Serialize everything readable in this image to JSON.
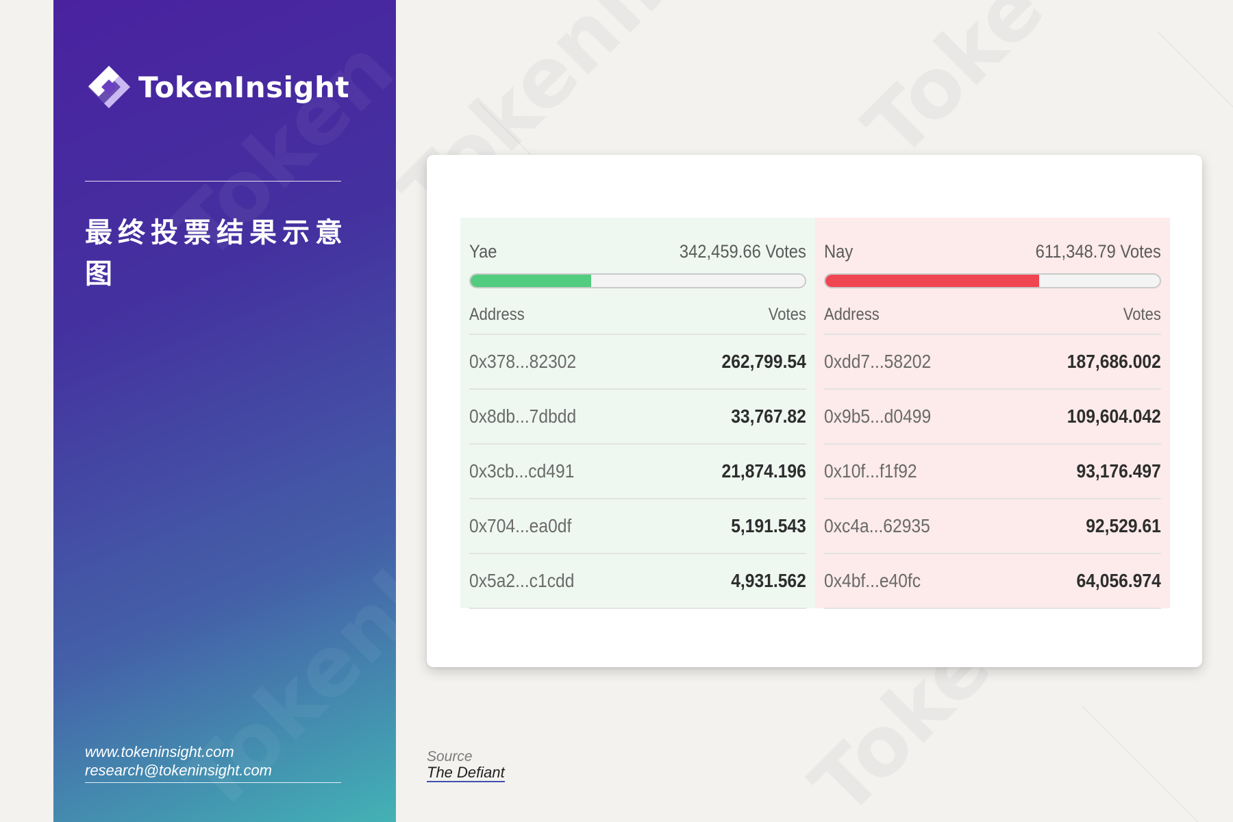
{
  "brand": {
    "name": "TokenInsight",
    "watermark": "TokenInsight"
  },
  "sidebar": {
    "title": "最终投票结果示意图",
    "website": "www.tokeninsight.com",
    "email": "research@tokeninsight.com"
  },
  "source": {
    "label": "Source",
    "name": "The Defiant"
  },
  "colors": {
    "sidebar_top": "#4a22a0",
    "sidebar_bottom": "#43b2b5",
    "yae_bar": "#52cc7e",
    "nay_bar": "#ef4652",
    "yae_bg": "#eef8f1",
    "nay_bg": "#fdeaea"
  },
  "vote": {
    "yae": {
      "label": "Yae",
      "total": "342,459.66 Votes",
      "progress_fraction": 0.36,
      "address_header": "Address",
      "votes_header": "Votes",
      "rows": [
        {
          "address": "0x378...82302",
          "votes": "262,799.54"
        },
        {
          "address": "0x8db...7dbdd",
          "votes": "33,767.82"
        },
        {
          "address": "0x3cb...cd491",
          "votes": "21,874.196"
        },
        {
          "address": "0x704...ea0df",
          "votes": "5,191.543"
        },
        {
          "address": "0x5a2...c1cdd",
          "votes": "4,931.562"
        }
      ]
    },
    "nay": {
      "label": "Nay",
      "total": "611,348.79 Votes",
      "progress_fraction": 0.64,
      "address_header": "Address",
      "votes_header": "Votes",
      "rows": [
        {
          "address": "0xdd7...58202",
          "votes": "187,686.002"
        },
        {
          "address": "0x9b5...d0499",
          "votes": "109,604.042"
        },
        {
          "address": "0x10f...f1f92",
          "votes": "93,176.497"
        },
        {
          "address": "0xc4a...62935",
          "votes": "92,529.61"
        },
        {
          "address": "0x4bf...e40fc",
          "votes": "64,056.974"
        }
      ]
    }
  }
}
